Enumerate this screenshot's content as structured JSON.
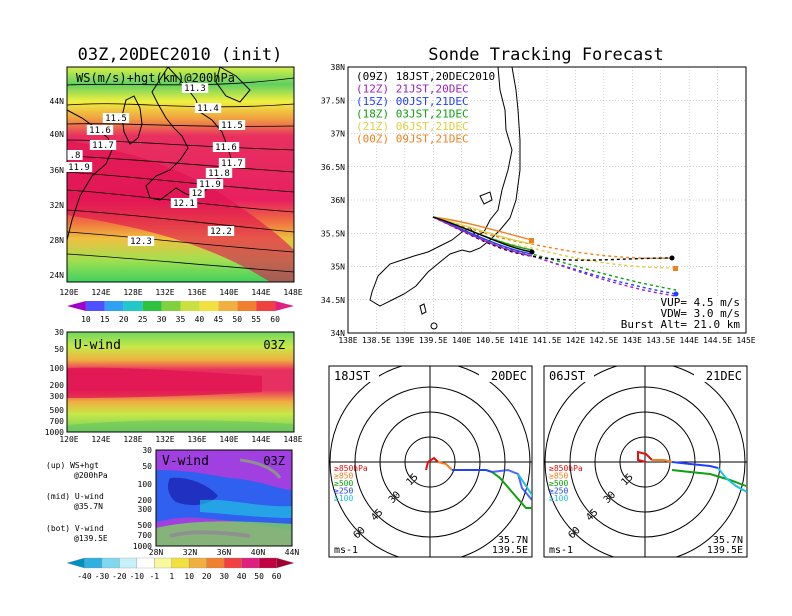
{
  "left_title": "03Z,20DEC2010 (init)",
  "right_title": "Sonde Tracking Forecast",
  "ws_panel": {
    "label": "WS(m/s)+hgt(km)@200hPa",
    "lat_labels": [
      "44N",
      "40N",
      "36N",
      "32N",
      "28N",
      "24N"
    ],
    "lon_labels": [
      "120E",
      "124E",
      "128E",
      "132E",
      "136E",
      "140E",
      "144E",
      "148E"
    ],
    "contour_labels": [
      "11.3",
      "11.4",
      "11.5",
      "11.5",
      "11.6",
      "11.6",
      "11.7",
      "11.7",
      "11.8",
      "11.9",
      "12",
      "12.1",
      "12.2",
      "12.3",
      ".8",
      "11.9"
    ],
    "colorbar_labels": [
      "10",
      "15",
      "20",
      "25",
      "30",
      "35",
      "40",
      "45",
      "50",
      "55",
      "60"
    ]
  },
  "u_panel": {
    "label": "U-wind",
    "time": "03Z",
    "p_labels": [
      "30",
      "50",
      "100",
      "200",
      "300",
      "500",
      "700",
      "1000"
    ],
    "lon_labels": [
      "120E",
      "124E",
      "128E",
      "132E",
      "136E",
      "140E",
      "144E",
      "148E"
    ]
  },
  "v_panel": {
    "label": "V-wind",
    "time": "03Z",
    "p_labels": [
      "30",
      "50",
      "100",
      "200",
      "300",
      "500",
      "700",
      "1000"
    ],
    "lat_labels": [
      "28N",
      "32N",
      "36N",
      "40N",
      "44N"
    ],
    "colorbar_labels": [
      "-40",
      "-30",
      "-20",
      "-10",
      "-1",
      "1",
      "10",
      "20",
      "30",
      "40",
      "50",
      "60"
    ]
  },
  "notes": [
    "(up) WS+hgt",
    "@200hPa",
    "(mid) U-wind",
    "@35.7N",
    "(bot) V-wind",
    "@139.5E"
  ],
  "track_map": {
    "lat_labels": [
      "38N",
      "37.5N",
      "37N",
      "36.5N",
      "36N",
      "35.5N",
      "35N",
      "34.5N",
      "34N"
    ],
    "lon_labels": [
      "138E",
      "138.5E",
      "139E",
      "139.5E",
      "140E",
      "140.5E",
      "141E",
      "141.5E",
      "142E",
      "142.5E",
      "143E",
      "143.5E",
      "144E",
      "144.5E",
      "145E"
    ],
    "legend": [
      {
        "text": "(09Z) 18JST,20DEC2010",
        "color": "#000000"
      },
      {
        "text": "(12Z) 21JST,20DEC",
        "color": "#a020c0"
      },
      {
        "text": "(15Z) 00JST,21DEC",
        "color": "#2040ff"
      },
      {
        "text": "(18Z) 03JST,21DEC",
        "color": "#10a010"
      },
      {
        "text": "(21Z) 06JST,21DEC",
        "color": "#e0d040"
      },
      {
        "text": "(00Z) 09JST,21DEC",
        "color": "#f08020"
      }
    ],
    "params": [
      "VUP= 4.5 m/s",
      "VDW= 3.0 m/s",
      "Burst Alt= 21.0 km"
    ]
  },
  "hodographs": [
    {
      "time": "18JST",
      "date": "20DEC",
      "loc1": "35.7N",
      "loc2": "139.5E",
      "unit": "ms-1",
      "rings": [
        "15",
        "30",
        "45",
        "60"
      ],
      "levels": [
        {
          "text": "≥850hPa",
          "color": "#e01010"
        },
        {
          "text": "≥850",
          "color": "#f08020"
        },
        {
          "text": "≥500",
          "color": "#10a010"
        },
        {
          "text": "≥250",
          "color": "#2040ff"
        },
        {
          "text": "≥100",
          "color": "#20c0e0"
        }
      ]
    },
    {
      "time": "06JST",
      "date": "21DEC",
      "loc1": "35.7N",
      "loc2": "139.5E",
      "unit": "ms-1",
      "rings": [
        "15",
        "30",
        "45",
        "60"
      ],
      "levels": [
        {
          "text": "≥850hPa",
          "color": "#e01010"
        },
        {
          "text": "≥850",
          "color": "#f08020"
        },
        {
          "text": "≥500",
          "color": "#10a010"
        },
        {
          "text": "≥250",
          "color": "#2040ff"
        },
        {
          "text": "≥100",
          "color": "#20c0e0"
        }
      ]
    }
  ]
}
